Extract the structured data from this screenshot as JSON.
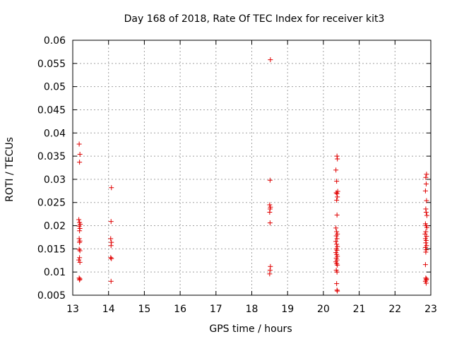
{
  "chart_data": {
    "type": "scatter",
    "title": "Day 168 of 2018, Rate Of TEC Index for receiver kit3",
    "xlabel": "GPS time / hours",
    "ylabel": "ROTI / TECUs",
    "xlim": [
      13,
      23
    ],
    "ylim": [
      0.005,
      0.06
    ],
    "xticks": [
      "13",
      "14",
      "15",
      "16",
      "17",
      "18",
      "19",
      "20",
      "21",
      "22",
      "23"
    ],
    "yticks": [
      "0.005",
      "0.01",
      "0.015",
      "0.02",
      "0.025",
      "0.03",
      "0.035",
      "0.04",
      "0.045",
      "0.05",
      "0.055",
      "0.06"
    ],
    "grid": true,
    "marker": "+",
    "color": "#e00000",
    "series": [
      {
        "points": [
          [
            13.18,
            0.0376
          ],
          [
            13.2,
            0.0354
          ],
          [
            13.19,
            0.0337
          ],
          [
            13.17,
            0.0213
          ],
          [
            13.19,
            0.0207
          ],
          [
            13.21,
            0.0203
          ],
          [
            13.18,
            0.0199
          ],
          [
            13.2,
            0.0194
          ],
          [
            13.19,
            0.0189
          ],
          [
            13.18,
            0.0172
          ],
          [
            13.2,
            0.0167
          ],
          [
            13.19,
            0.0164
          ],
          [
            13.18,
            0.0149
          ],
          [
            13.2,
            0.0146
          ],
          [
            13.19,
            0.0131
          ],
          [
            13.17,
            0.0126
          ],
          [
            13.2,
            0.0121
          ],
          [
            13.18,
            0.0087
          ],
          [
            13.2,
            0.0085
          ],
          [
            13.19,
            0.0083
          ],
          [
            14.08,
            0.0282
          ],
          [
            14.07,
            0.0209
          ],
          [
            14.06,
            0.0172
          ],
          [
            14.08,
            0.0164
          ],
          [
            14.07,
            0.0157
          ],
          [
            14.06,
            0.0131
          ],
          [
            14.08,
            0.0129
          ],
          [
            14.07,
            0.008
          ],
          [
            18.52,
            0.0558
          ],
          [
            18.51,
            0.0298
          ],
          [
            18.5,
            0.0245
          ],
          [
            18.52,
            0.024
          ],
          [
            18.51,
            0.0236
          ],
          [
            18.5,
            0.0229
          ],
          [
            18.51,
            0.0206
          ],
          [
            18.52,
            0.0112
          ],
          [
            18.51,
            0.0104
          ],
          [
            18.5,
            0.0096
          ],
          [
            20.38,
            0.035
          ],
          [
            20.39,
            0.0344
          ],
          [
            20.35,
            0.032
          ],
          [
            20.37,
            0.0296
          ],
          [
            20.4,
            0.0274
          ],
          [
            20.36,
            0.0271
          ],
          [
            20.38,
            0.0269
          ],
          [
            20.39,
            0.0262
          ],
          [
            20.37,
            0.0255
          ],
          [
            20.38,
            0.0223
          ],
          [
            20.35,
            0.0195
          ],
          [
            20.37,
            0.0187
          ],
          [
            20.39,
            0.0182
          ],
          [
            20.36,
            0.0178
          ],
          [
            20.38,
            0.0172
          ],
          [
            20.35,
            0.0166
          ],
          [
            20.37,
            0.016
          ],
          [
            20.39,
            0.0155
          ],
          [
            20.36,
            0.015
          ],
          [
            20.38,
            0.0147
          ],
          [
            20.35,
            0.0142
          ],
          [
            20.37,
            0.0138
          ],
          [
            20.39,
            0.0134
          ],
          [
            20.36,
            0.013
          ],
          [
            20.38,
            0.0126
          ],
          [
            20.35,
            0.0122
          ],
          [
            20.37,
            0.0118
          ],
          [
            20.39,
            0.0115
          ],
          [
            20.36,
            0.0104
          ],
          [
            20.38,
            0.01
          ],
          [
            20.37,
            0.0075
          ],
          [
            20.38,
            0.0061
          ],
          [
            20.39,
            0.0059
          ],
          [
            22.88,
            0.0311
          ],
          [
            22.86,
            0.0304
          ],
          [
            22.87,
            0.029
          ],
          [
            22.85,
            0.0275
          ],
          [
            22.88,
            0.0254
          ],
          [
            22.86,
            0.0236
          ],
          [
            22.87,
            0.0229
          ],
          [
            22.89,
            0.0222
          ],
          [
            22.85,
            0.0204
          ],
          [
            22.87,
            0.02
          ],
          [
            22.89,
            0.0196
          ],
          [
            22.86,
            0.0187
          ],
          [
            22.84,
            0.0182
          ],
          [
            22.88,
            0.0177
          ],
          [
            22.85,
            0.0172
          ],
          [
            22.87,
            0.0168
          ],
          [
            22.86,
            0.0163
          ],
          [
            22.88,
            0.0157
          ],
          [
            22.85,
            0.0153
          ],
          [
            22.87,
            0.0148
          ],
          [
            22.86,
            0.0143
          ],
          [
            22.85,
            0.0116
          ],
          [
            22.86,
            0.0087
          ],
          [
            22.88,
            0.0085
          ],
          [
            22.87,
            0.0083
          ],
          [
            22.85,
            0.008
          ],
          [
            22.87,
            0.0076
          ]
        ]
      }
    ]
  }
}
